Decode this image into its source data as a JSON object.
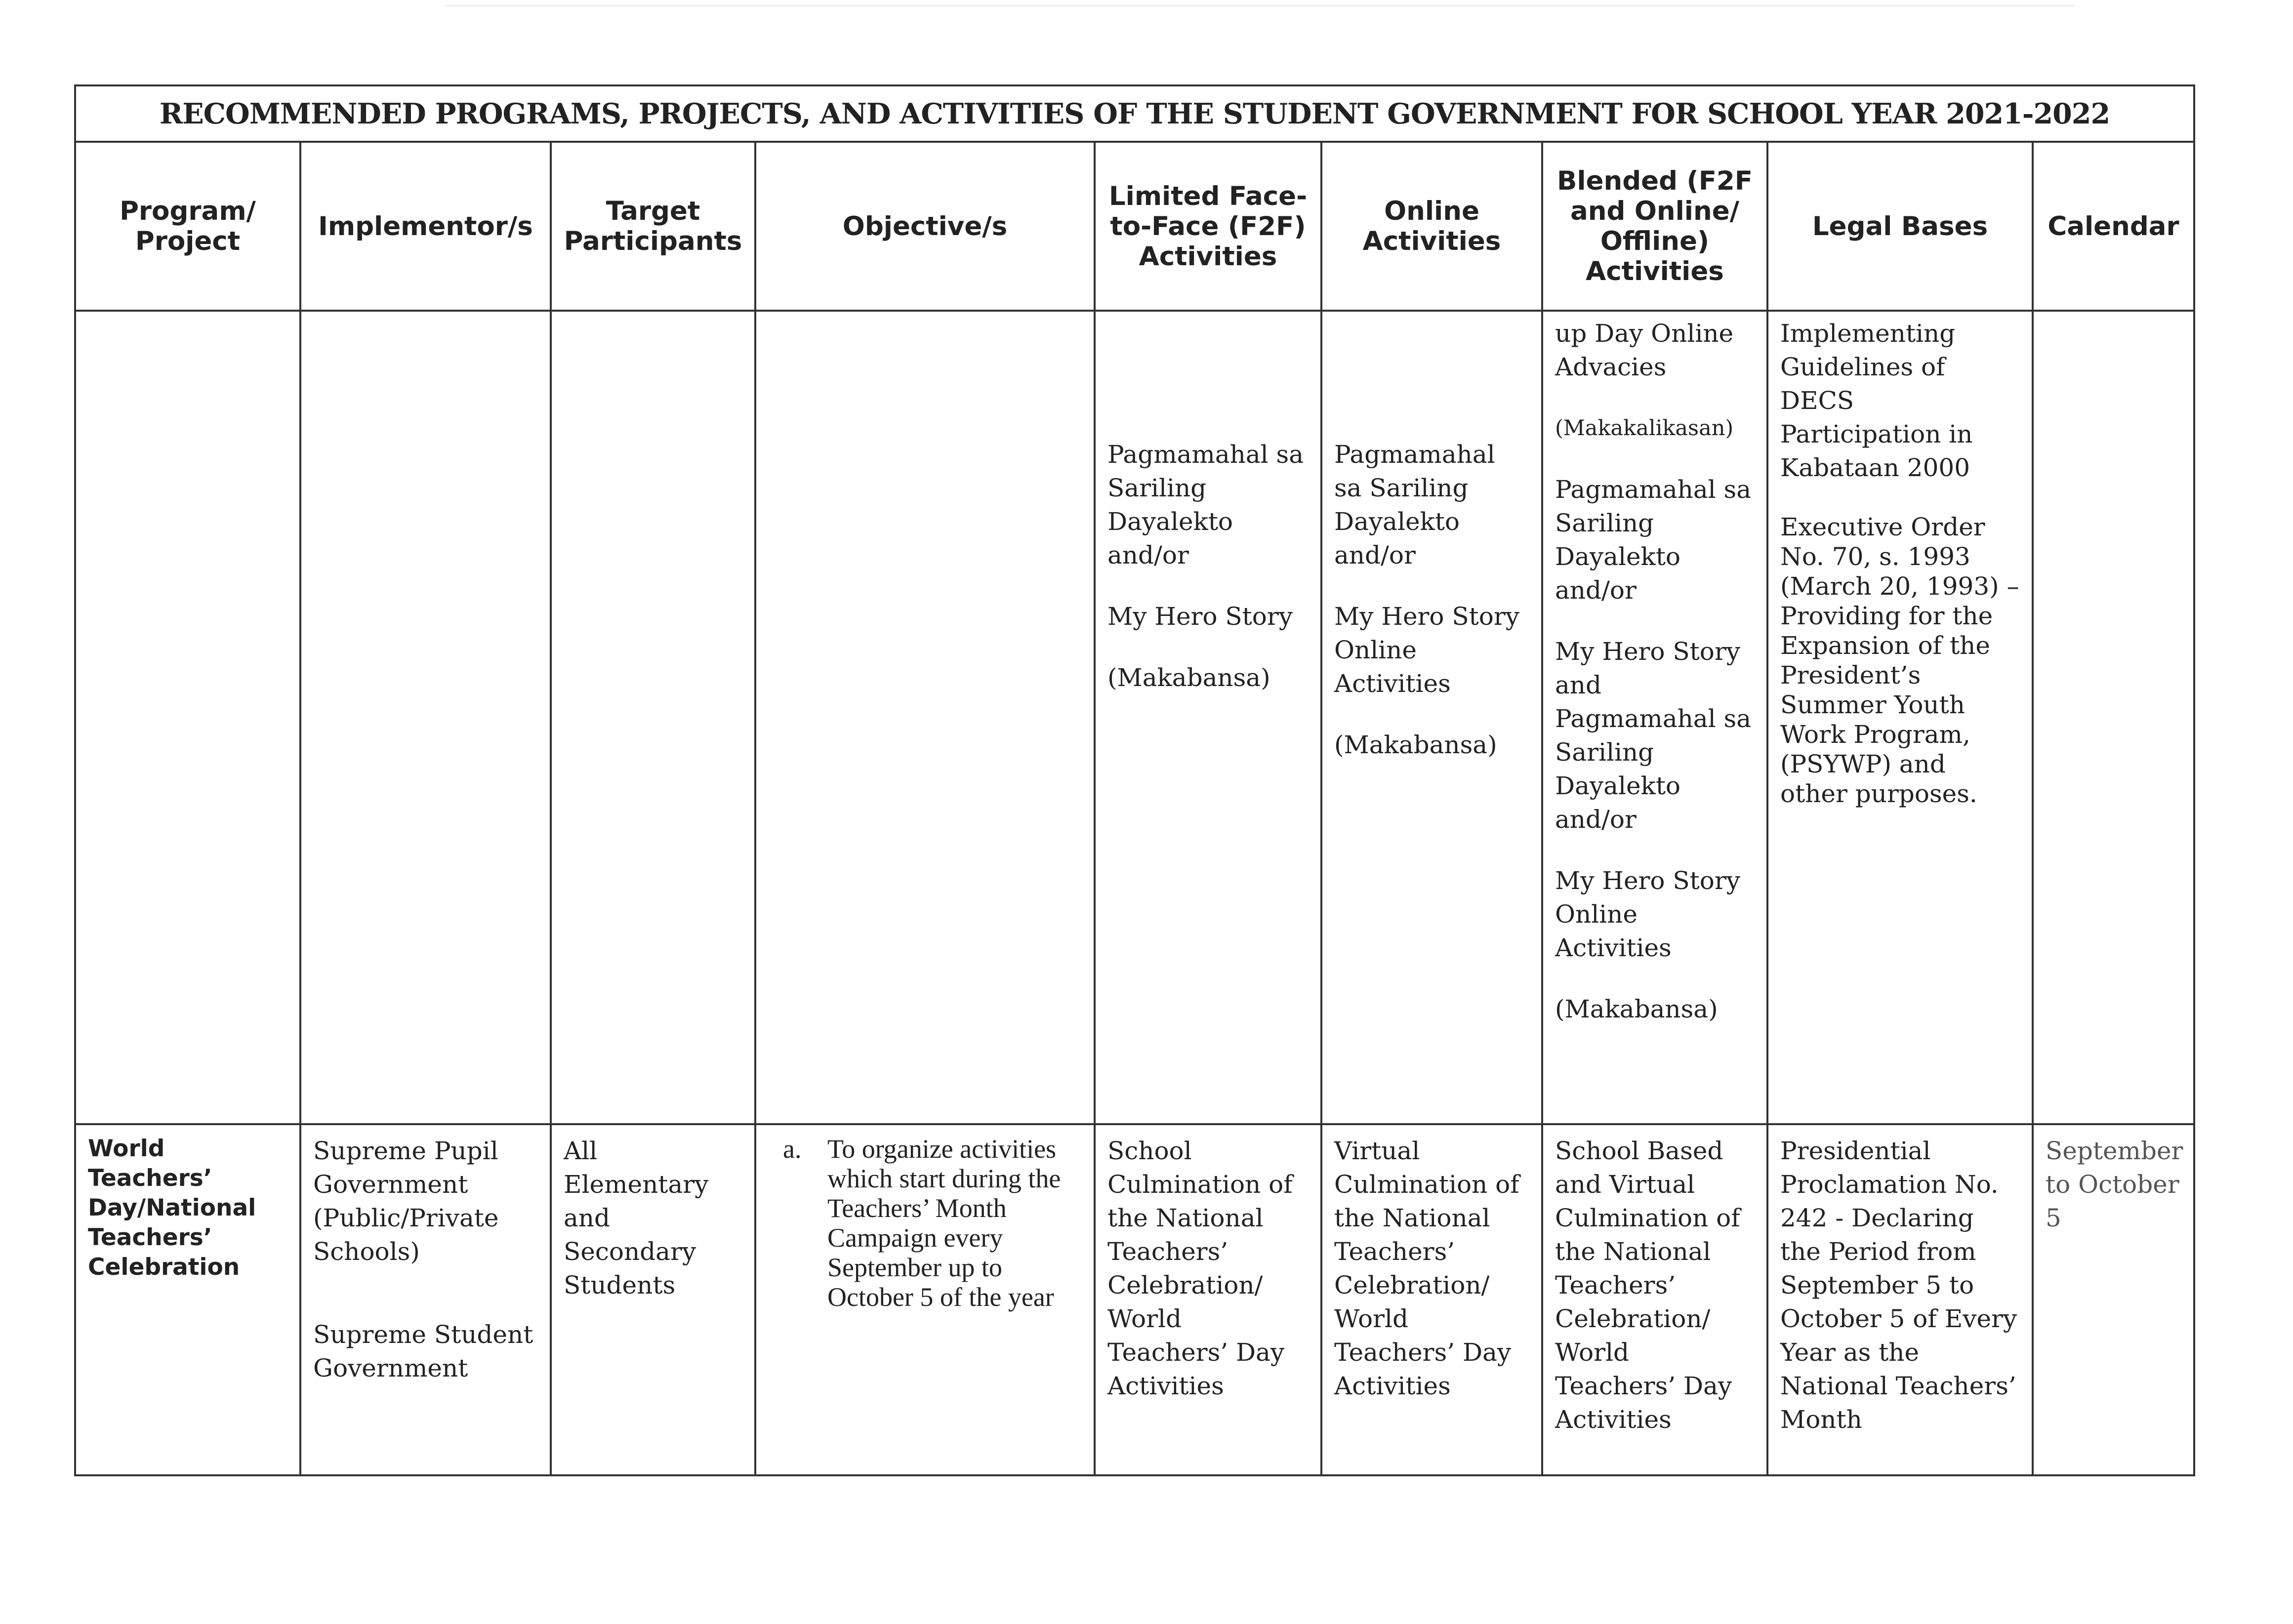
{
  "title": "RECOMMENDED PROGRAMS, PROJECTS, AND ACTIVITIES OF THE STUDENT GOVERNMENT FOR SCHOOL YEAR 2021-2022",
  "headers": [
    "Program/ Project",
    "Implementor/s",
    "Target Participants",
    "Objective/s",
    "Limited Face-to-Face (F2F) Activities",
    "Online Activities",
    "Blended (F2F and Online/ Offline) Activities",
    "Legal Bases",
    "Calendar"
  ],
  "rows": [
    {
      "program": [],
      "implementors": [],
      "participants": [],
      "objectives": [],
      "f2f": [
        "Pagmamahal sa Sariling Dayalekto and/or",
        "My Hero Story",
        "(Makabansa)"
      ],
      "online": [
        "Pagmamahal sa Sariling Dayalekto and/or",
        "My Hero Story Online Activities",
        "(Makabansa)"
      ],
      "blended": [
        "up Day Online Advacies",
        "(Makakalikasan)",
        "Pagmamahal sa Sariling Dayalekto and/or",
        "My Hero Story and Pagmamahal sa Sariling Dayalekto and/or",
        "My Hero Story Online Activities",
        "(Makabansa)"
      ],
      "legal": [
        "Implementing Guidelines of DECS Participation in Kabataan 2000",
        "Executive Order No. 70, s. 1993 (March 20, 1993) – Providing for the Expansion of the President’s Summer Youth Work Program, (PSYWP) and other purposes."
      ],
      "calendar": []
    },
    {
      "program": [
        "World Teachers’ Day/National Teachers’ Celebration"
      ],
      "implementors": [
        "Supreme Pupil Government (Public/Private Schools)",
        "Supreme Student Government"
      ],
      "participants": [
        "All Elementary and Secondary Students"
      ],
      "objective_marker": "a.",
      "objectives": [
        "To organize activities which start during the Teachers’ Month Campaign every September up to October 5 of the year"
      ],
      "f2f": [
        "School Culmination of the National Teachers’ Celebration/ World Teachers’ Day Activities"
      ],
      "online": [
        "Virtual Culmination of the National Teachers’ Celebration/ World Teachers’ Day Activities"
      ],
      "blended": [
        "School Based and Virtual Culmination of the National Teachers’ Celebration/ World Teachers’ Day Activities"
      ],
      "legal": [
        "Presidential Proclamation No. 242 - Declaring the Period from September 5 to October 5 of Every Year as the National Teachers’ Month"
      ],
      "calendar": [
        "September to October 5"
      ]
    }
  ]
}
